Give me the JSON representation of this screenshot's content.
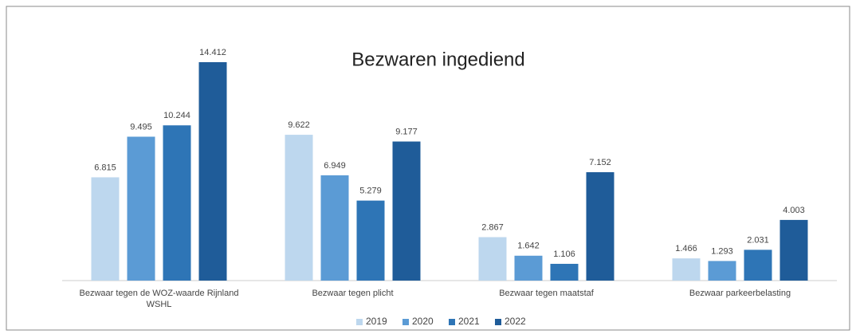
{
  "chart_data": {
    "type": "bar",
    "title": "Bezwaren ingediend",
    "categories": [
      "Bezwaar tegen de WOZ-waarde Rijnland WSHL",
      "Bezwaar tegen plicht",
      "Bezwaar tegen maatstaf",
      "Bezwaar parkeerbelasting"
    ],
    "series": [
      {
        "name": "2019",
        "color": "#bdd7ee",
        "values": [
          6815,
          9622,
          2867,
          1466
        ],
        "value_labels": [
          "6.815",
          "9.622",
          "2.867",
          "1.466"
        ]
      },
      {
        "name": "2020",
        "color": "#5b9bd5",
        "values": [
          9495,
          6949,
          1642,
          1293
        ],
        "value_labels": [
          "9.495",
          "6.949",
          "1.642",
          "1.293"
        ]
      },
      {
        "name": "2021",
        "color": "#2e75b6",
        "values": [
          10244,
          5279,
          1106,
          2031
        ],
        "value_labels": [
          "10.244",
          "5.279",
          "1.106",
          "2.031"
        ]
      },
      {
        "name": "2022",
        "color": "#1f5c99",
        "values": [
          14412,
          9177,
          7152,
          4003
        ],
        "value_labels": [
          "14.412",
          "9.177",
          "7.152",
          "4.003"
        ]
      }
    ],
    "legend": "bottom"
  }
}
